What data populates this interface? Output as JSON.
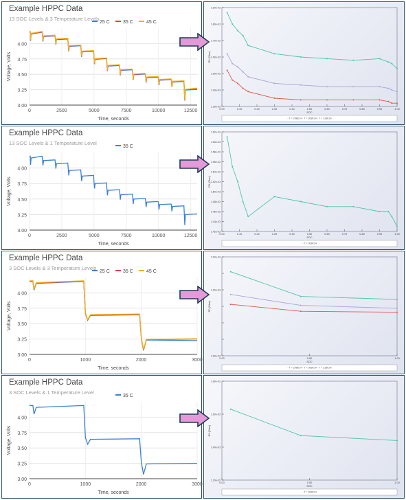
{
  "panels": [
    {
      "title": "Example HPPC Data",
      "subtitle": "13 SOC Levels &  3 Temperature Levels",
      "right_x_ticks": [
        "0.00",
        "0.10",
        "0.20",
        "0.30",
        "0.40",
        "0.50",
        "0.60",
        "0.70",
        "0.80",
        "0.90",
        "1.00"
      ],
      "right_y_ticks": [
        "1.90e-03",
        "1.80e-03",
        "1.70e-03",
        "1.60e-03",
        "1.50e-03",
        "1.40e-03",
        "1.30e-03"
      ],
      "right_xlabel": "SOC",
      "right_ylabel": "R0 (Ohm)",
      "right_legend": "- T = 298K14   - T = 308K14   - T = 318K14"
    },
    {
      "title": "Example HPPC Data",
      "subtitle": "13 SOC Levels &  1 Temperature Level",
      "right_x_ticks": [
        "0.00",
        "0.10",
        "0.20",
        "0.30",
        "0.40",
        "0.50",
        "0.60",
        "0.70",
        "0.80",
        "0.90",
        "1.00"
      ],
      "right_y_ticks": [
        "1.62e-03",
        "1.60e-03",
        "1.58e-03",
        "1.56e-03",
        "1.54e-03",
        "1.52e-03",
        "1.50e-03",
        "1.48e-03",
        "1.46e-03",
        "1.44e-03",
        "1.42e-03"
      ],
      "right_xlabel": "SOC",
      "right_ylabel": "R0 (Ohm)",
      "right_legend": "- T = 308K14"
    },
    {
      "title": "Example HPPC Data",
      "subtitle": "3 SOC Levels &  3 Temperature Levels",
      "right_x_ticks": [
        "0.00",
        "0.50",
        "1.00"
      ],
      "right_y_ticks": [
        "2.00e-03",
        "",
        "1.00e-03",
        "",
        "",
        "",
        "1.00e-03"
      ],
      "right_xlabel": "SOC",
      "right_ylabel": "R0 (Ohm)",
      "right_legend": "- T = 298K14   - T = 308K14   - T = 318K14"
    },
    {
      "title": "Example HPPC Data",
      "subtitle": "3 SOC Levels &  1 Temperature Level",
      "right_x_ticks": [
        "0.00",
        "0.50",
        "1.00"
      ],
      "right_y_ticks": [
        "1.80e-03",
        "1.60e-03",
        "1.40e-03",
        "1.20e-03"
      ],
      "right_xlabel": "SOC",
      "right_ylabel": "R0 (Ohm)",
      "right_legend": "- T = 308K14"
    }
  ],
  "colors": {
    "t25": "#3b7fd6",
    "t35": "#e0443a",
    "t45": "#f2b21b",
    "r_teal": "#4ec3a8",
    "r_purple": "#a9a4d8",
    "r_red": "#e25548",
    "arrow_fill": "#e49ad8",
    "arrow_stroke": "#1f3a57",
    "panel_border": "#2d4f6b"
  },
  "chart_data": [
    {
      "type": "line",
      "title": "Example HPPC Data",
      "xlabel": "Time, seconds",
      "ylabel": "Voltage, Volts",
      "xlim": [
        0,
        13000
      ],
      "ylim": [
        3.0,
        4.25
      ],
      "x_ticks": [
        "0",
        "2500",
        "5000",
        "7500",
        "10000",
        "12500"
      ],
      "y_ticks": [
        "3.00",
        "3.25",
        "3.50",
        "3.75",
        "4.00"
      ],
      "legend": [
        "25 C",
        "35 C",
        "45 C"
      ],
      "legend_position": "top",
      "grid": true,
      "soc_levels": [
        4.19,
        4.13,
        4.08,
        3.97,
        3.88,
        3.76,
        3.65,
        3.58,
        3.51,
        3.46,
        3.42,
        3.39,
        3.26
      ],
      "series": [
        {
          "name": "25 C",
          "colorKey": "t25",
          "final_v": 3.26
        },
        {
          "name": "35 C",
          "colorKey": "t35",
          "final_v": 3.27
        },
        {
          "name": "45 C",
          "colorKey": "t45",
          "final_v": 3.27
        }
      ]
    },
    {
      "type": "line",
      "xlabel": "SOC",
      "ylabel": "R0 (Ohm)",
      "xlim": [
        0,
        1
      ],
      "ylim": [
        0.0013,
        0.0019
      ],
      "series": [
        {
          "name": "T = 298K14",
          "colorKey": "r_teal",
          "x": [
            0.03,
            0.06,
            0.09,
            0.12,
            0.15,
            0.3,
            0.45,
            0.6,
            0.75,
            0.9,
            0.95,
            0.97,
            1.0
          ],
          "y": [
            0.00187,
            0.0018,
            0.00176,
            0.00173,
            0.00167,
            0.00162,
            0.0016,
            0.00159,
            0.00158,
            0.00159,
            0.00157,
            0.00156,
            0.00153
          ]
        },
        {
          "name": "T = 308K14",
          "colorKey": "r_purple",
          "x": [
            0.03,
            0.06,
            0.09,
            0.12,
            0.15,
            0.3,
            0.45,
            0.6,
            0.75,
            0.9,
            0.95,
            0.97,
            1.0
          ],
          "y": [
            0.00162,
            0.00156,
            0.00154,
            0.00151,
            0.00148,
            0.00144,
            0.00143,
            0.00142,
            0.00142,
            0.00142,
            0.00141,
            0.0014,
            0.00139
          ]
        },
        {
          "name": "T = 318K14",
          "colorKey": "r_red",
          "x": [
            0.03,
            0.06,
            0.09,
            0.12,
            0.15,
            0.3,
            0.45,
            0.6,
            0.75,
            0.9,
            0.95,
            0.97,
            1.0
          ],
          "y": [
            0.00152,
            0.00146,
            0.00144,
            0.00141,
            0.00139,
            0.00135,
            0.00134,
            0.00134,
            0.00134,
            0.00134,
            0.00133,
            0.00132,
            0.00132
          ]
        }
      ]
    },
    {
      "type": "line",
      "title": "Example HPPC Data",
      "xlabel": "Time, seconds",
      "ylabel": "Voltage, Volts",
      "xlim": [
        0,
        13000
      ],
      "ylim": [
        3.0,
        4.25
      ],
      "x_ticks": [
        "0",
        "2500",
        "5000",
        "7500",
        "10000",
        "12500"
      ],
      "y_ticks": [
        "3.00",
        "3.25",
        "3.50",
        "3.75",
        "4.00"
      ],
      "legend": [
        "35 C"
      ],
      "legend_position": "top",
      "grid": true,
      "soc_levels": [
        4.19,
        4.13,
        4.08,
        3.97,
        3.88,
        3.76,
        3.65,
        3.58,
        3.51,
        3.46,
        3.42,
        3.39,
        3.26
      ],
      "series": [
        {
          "name": "35 C",
          "colorKey": "t25",
          "final_v": 3.26
        }
      ]
    },
    {
      "type": "line",
      "xlabel": "SOC",
      "ylabel": "R0 (Ohm)",
      "xlim": [
        0,
        1
      ],
      "ylim": [
        0.00142,
        0.00162
      ],
      "series": [
        {
          "name": "T = 308K14",
          "colorKey": "r_teal",
          "x": [
            0.03,
            0.06,
            0.09,
            0.12,
            0.15,
            0.3,
            0.45,
            0.6,
            0.75,
            0.9,
            0.95,
            0.97,
            1.0
          ],
          "y": [
            0.00161,
            0.00155,
            0.00152,
            0.00148,
            0.00145,
            0.00149,
            0.00148,
            0.00147,
            0.00147,
            0.00146,
            0.00146,
            0.00145,
            0.00143
          ]
        }
      ]
    },
    {
      "type": "line",
      "title": "Example HPPC Data",
      "xlabel": "Time, seconds",
      "ylabel": "Voltage, Volts",
      "xlim": [
        0,
        3000
      ],
      "ylim": [
        3.0,
        4.25
      ],
      "x_ticks": [
        "0",
        "1000",
        "2000",
        "3000"
      ],
      "y_ticks": [
        "3.00",
        "3.25",
        "3.50",
        "3.75",
        "4.00"
      ],
      "legend": [
        "25 C",
        "35 C",
        "45 C"
      ],
      "legend_position": "top",
      "grid": true,
      "soc_levels": [
        4.19,
        3.65,
        3.25
      ],
      "series": [
        {
          "name": "25 C",
          "colorKey": "t25",
          "final_v": 3.23
        },
        {
          "name": "35 C",
          "colorKey": "t35",
          "final_v": 3.25
        },
        {
          "name": "45 C",
          "colorKey": "t45",
          "final_v": 3.25
        }
      ]
    },
    {
      "type": "line",
      "xlabel": "SOC",
      "ylabel": "R0 (Ohm)",
      "xlim": [
        0,
        1
      ],
      "ylim": [
        0.001,
        0.002
      ],
      "series": [
        {
          "name": "T = 298K14",
          "colorKey": "r_teal",
          "x": [
            0.05,
            0.45,
            1.0
          ],
          "y": [
            0.00185,
            0.0016,
            0.00157
          ]
        },
        {
          "name": "T = 308K14",
          "colorKey": "r_purple",
          "x": [
            0.05,
            0.45,
            1.0
          ],
          "y": [
            0.00162,
            0.00151,
            0.00148
          ]
        },
        {
          "name": "T = 318K14",
          "colorKey": "r_red",
          "x": [
            0.05,
            0.45,
            1.0
          ],
          "y": [
            0.00152,
            0.00145,
            0.00144
          ]
        }
      ]
    },
    {
      "type": "line",
      "title": "Example HPPC Data",
      "xlabel": "Time, seconds",
      "ylabel": "Voltage, Volts",
      "xlim": [
        0,
        3000
      ],
      "ylim": [
        3.0,
        4.25
      ],
      "x_ticks": [
        "0",
        "1000",
        "2000",
        "3000"
      ],
      "y_ticks": [
        "3.00",
        "3.25",
        "3.50",
        "3.75",
        "4.00"
      ],
      "legend": [
        "35 C"
      ],
      "legend_position": "top",
      "grid": true,
      "soc_levels": [
        4.19,
        3.65,
        3.25
      ],
      "series": [
        {
          "name": "35 C",
          "colorKey": "t25",
          "final_v": 3.25
        }
      ]
    },
    {
      "type": "line",
      "xlabel": "SOC",
      "ylabel": "R0 (Ohm)",
      "xlim": [
        0,
        1
      ],
      "ylim": [
        0.0012,
        0.0018
      ],
      "series": [
        {
          "name": "T = 308K14",
          "colorKey": "r_teal",
          "x": [
            0.05,
            0.45,
            1.0
          ],
          "y": [
            0.00163,
            0.00147,
            0.00144
          ]
        }
      ]
    }
  ]
}
